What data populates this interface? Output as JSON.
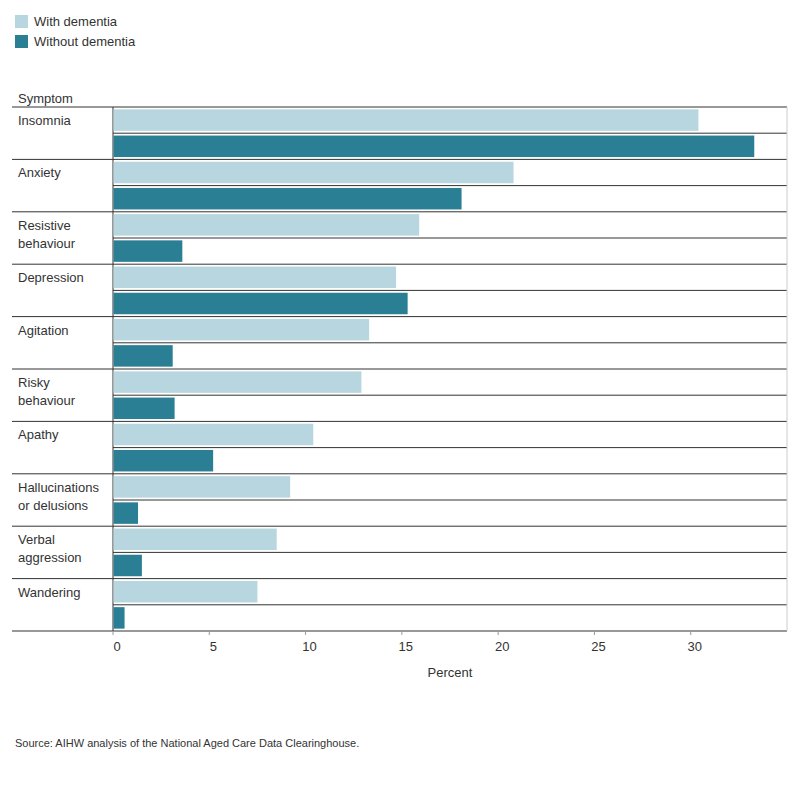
{
  "chart_data": {
    "type": "bar",
    "orientation": "horizontal",
    "ylabel": "Symptom",
    "xlabel": "Percent",
    "source": "Source: AIHW analysis of the National Aged Care Data Clearinghouse.",
    "categories": [
      "Insomnia",
      "Anxiety",
      "Resistive behaviour",
      "Depression",
      "Agitation",
      "Risky behaviour",
      "Apathy",
      "Hallucinations or delusions",
      "Verbal aggression",
      "Wandering"
    ],
    "series": [
      {
        "name": "With dementia",
        "color": "#b8d6df",
        "values": [
          30.4,
          20.8,
          15.9,
          14.7,
          13.3,
          12.9,
          10.4,
          9.2,
          8.5,
          7.5
        ]
      },
      {
        "name": "Without dementia",
        "color": "#2a7f94",
        "values": [
          33.3,
          18.1,
          3.6,
          15.3,
          3.1,
          3.2,
          5.2,
          1.3,
          1.5,
          0.6
        ]
      }
    ],
    "xlim": [
      0,
      35
    ],
    "xticks": [
      0,
      5,
      10,
      15,
      20,
      25,
      30
    ],
    "grid": false,
    "legend": "top-left"
  }
}
